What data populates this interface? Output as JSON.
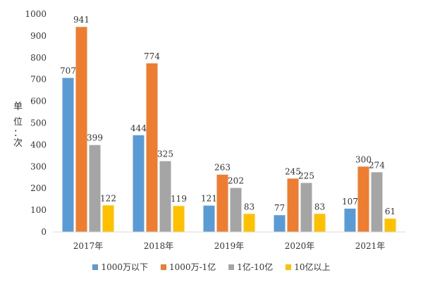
{
  "chart_data": {
    "type": "bar",
    "title": "",
    "xlabel": "",
    "ylabel": "单位：次",
    "ylim": [
      0,
      1000
    ],
    "yticks": [
      0,
      100,
      200,
      300,
      400,
      500,
      600,
      700,
      800,
      900,
      1000
    ],
    "categories": [
      "2017年",
      "2018年",
      "2019年",
      "2020年",
      "2021年"
    ],
    "series": [
      {
        "name": "1000万以下",
        "color": "#5B9BD5",
        "values": [
          707,
          444,
          121,
          77,
          107
        ]
      },
      {
        "name": "1000万-1亿",
        "color": "#ED7D31",
        "values": [
          941,
          774,
          263,
          245,
          300
        ]
      },
      {
        "name": "1亿-10亿",
        "color": "#A5A5A5",
        "values": [
          399,
          325,
          202,
          225,
          274
        ]
      },
      {
        "name": "10亿以上",
        "color": "#FFC000",
        "values": [
          122,
          119,
          83,
          83,
          61
        ]
      }
    ],
    "legend": "bottom",
    "grid": false
  },
  "ylabel_chars": [
    "单",
    "位",
    "：",
    "次"
  ]
}
